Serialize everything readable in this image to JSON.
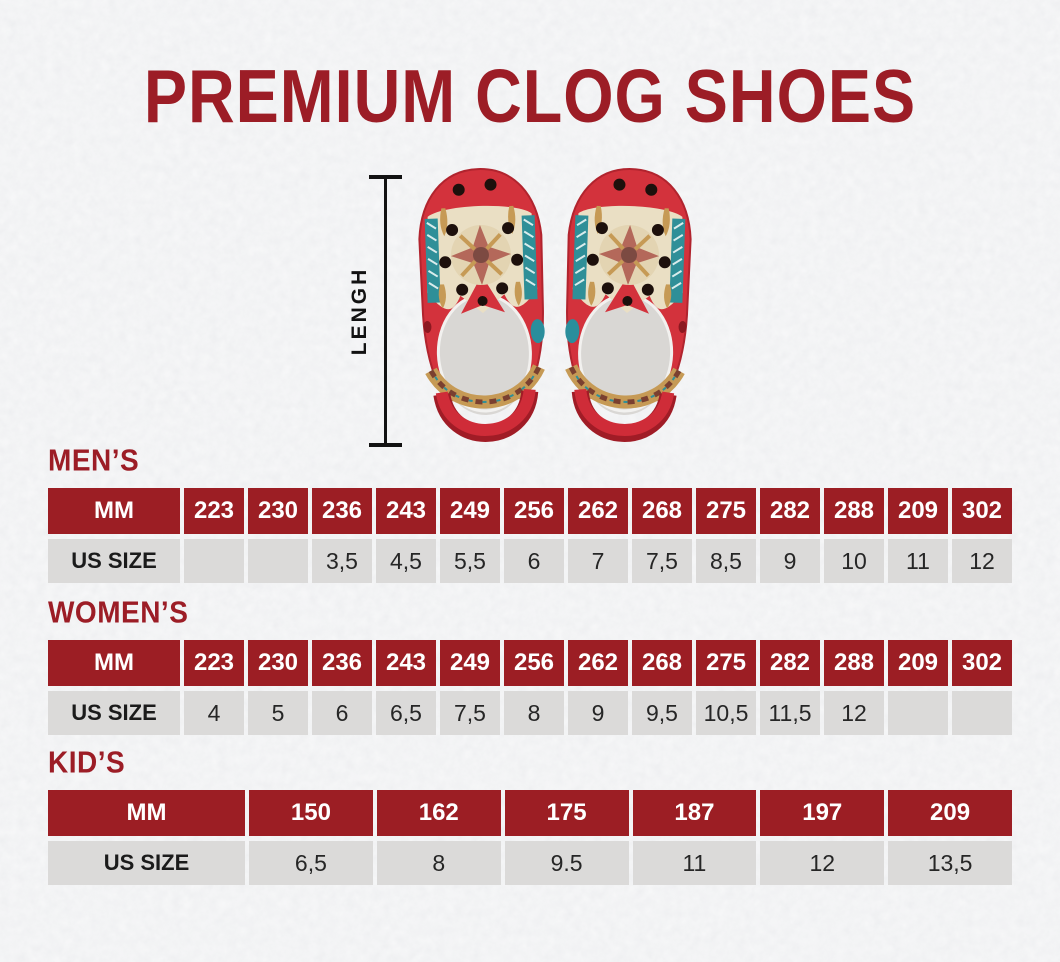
{
  "title": "PREMIUM CLOG SHOES",
  "diagram": {
    "length_label": "LENGH",
    "shoe_image": "pair-of-red-native-pattern-clogs-top-view"
  },
  "colors": {
    "accent_red": "#9C1E24",
    "title_red": "#9C1D26",
    "cell_gray": "#DBDAD9",
    "header_text": "#FFFFFF",
    "body_text": "#262626",
    "background": "#EDEEF0",
    "shoe_red": "#D3323C",
    "shoe_pattern_cream": "#EADFC4",
    "shoe_pattern_teal": "#2F8F98",
    "shoe_pattern_gold": "#C69A55"
  },
  "tables": {
    "mens": {
      "heading": "MEN’S",
      "mm_label": "MM",
      "us_label": "US SIZE",
      "mm": [
        "223",
        "230",
        "236",
        "243",
        "249",
        "256",
        "262",
        "268",
        "275",
        "282",
        "288",
        "209",
        "302"
      ],
      "us": [
        "",
        "",
        "3,5",
        "4,5",
        "5,5",
        "6",
        "7",
        "7,5",
        "8,5",
        "9",
        "10",
        "11",
        "12"
      ]
    },
    "womens": {
      "heading": "WOMEN’S",
      "mm_label": "MM",
      "us_label": "US SIZE",
      "mm": [
        "223",
        "230",
        "236",
        "243",
        "249",
        "256",
        "262",
        "268",
        "275",
        "282",
        "288",
        "209",
        "302"
      ],
      "us": [
        "4",
        "5",
        "6",
        "6,5",
        "7,5",
        "8",
        "9",
        "9,5",
        "10,5",
        "11,5",
        "12",
        "",
        ""
      ]
    },
    "kids": {
      "heading": "KID’S",
      "mm_label": "MM",
      "us_label": "US SIZE",
      "mm": [
        "150",
        "162",
        "175",
        "187",
        "197",
        "209"
      ],
      "us": [
        "6,5",
        "8",
        "9.5",
        "11",
        "12",
        "13,5"
      ]
    }
  }
}
